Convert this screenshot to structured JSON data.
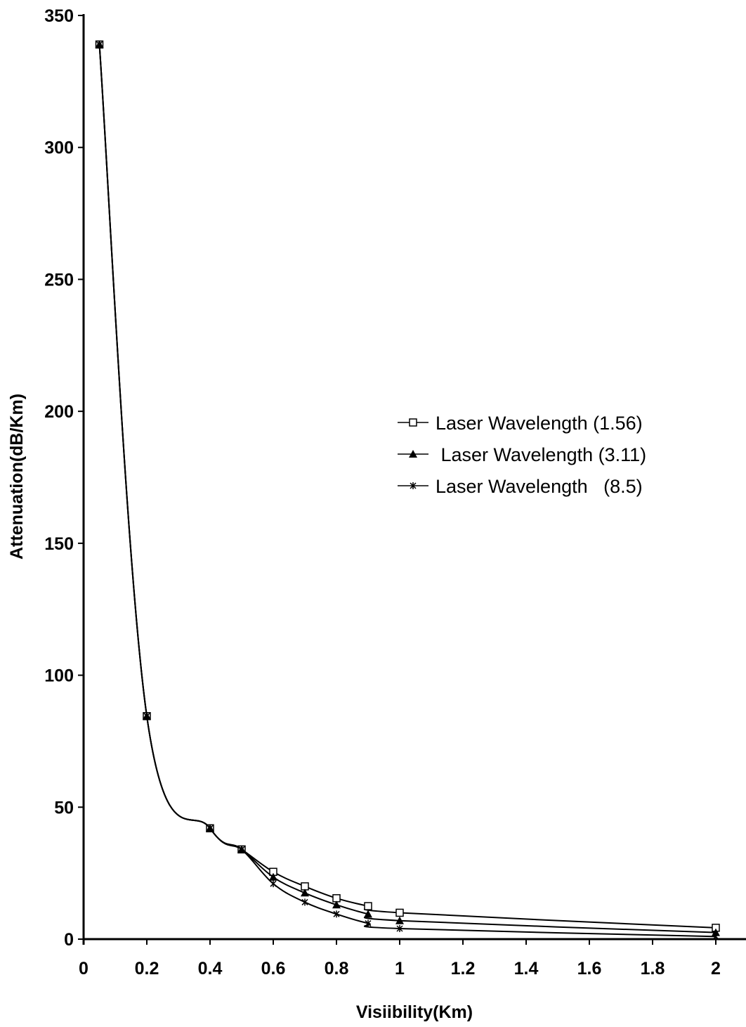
{
  "chart_data": {
    "type": "line",
    "xlabel": "Visiibility(Km)",
    "ylabel": "Attenuation(dB/Km)",
    "xlim": [
      0,
      2
    ],
    "ylim": [
      0,
      350
    ],
    "xticks": [
      "0",
      "0.2",
      "0.4",
      "0.6",
      "0.8",
      "1",
      "1.2",
      "1.4",
      "1.6",
      "1.8",
      "2"
    ],
    "yticks": [
      "0",
      "50",
      "100",
      "150",
      "200",
      "250",
      "300",
      "350"
    ],
    "legend_position": "center-right",
    "grid": false,
    "series": [
      {
        "name": "Laser Wavelength (1.56)",
        "marker": "square-open",
        "x": [
          0.05,
          0.2,
          0.4,
          0.5,
          0.6,
          0.7,
          0.8,
          0.9,
          1.0,
          2.0
        ],
        "y": [
          339,
          84.5,
          42,
          34,
          25.5,
          20,
          15.5,
          12.5,
          10,
          4.3
        ]
      },
      {
        "name": " Laser Wavelength (3.11)",
        "marker": "triangle-filled",
        "x": [
          0.05,
          0.2,
          0.4,
          0.5,
          0.6,
          0.7,
          0.8,
          0.9,
          1.0,
          2.0
        ],
        "y": [
          339,
          84.5,
          42,
          34,
          23.5,
          17.5,
          13,
          9.5,
          7,
          2.5
        ]
      },
      {
        "name": "Laser Wavelength   (8.5)",
        "marker": "asterisk",
        "x": [
          0.05,
          0.2,
          0.4,
          0.5,
          0.6,
          0.7,
          0.8,
          0.9,
          1.0,
          2.0
        ],
        "y": [
          339,
          84.5,
          42,
          34,
          21,
          14,
          9.5,
          6,
          4,
          1
        ]
      }
    ]
  }
}
